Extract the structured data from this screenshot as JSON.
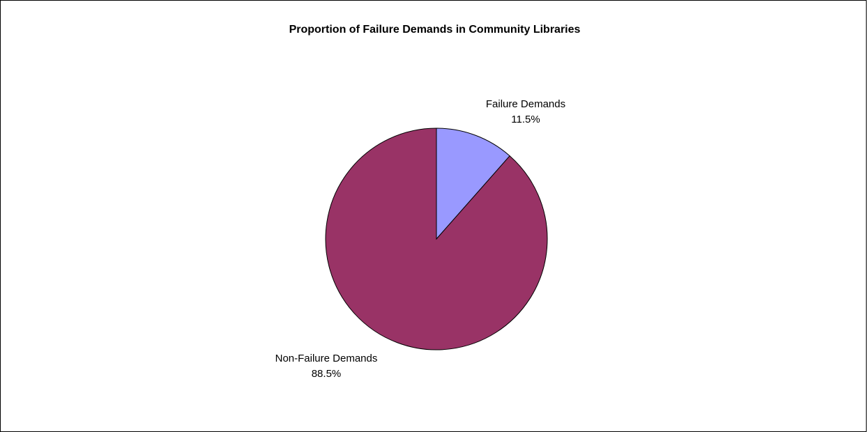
{
  "chart_data": {
    "type": "pie",
    "title": "Proportion of Failure Demands in Community Libraries",
    "categories": [
      "Failure Demands",
      "Non-Failure Demands"
    ],
    "values": [
      11.5,
      88.5
    ],
    "labels": [
      "11.5%",
      "88.5%"
    ],
    "colors": [
      "#9999FF",
      "#993366"
    ],
    "legend": "none"
  }
}
